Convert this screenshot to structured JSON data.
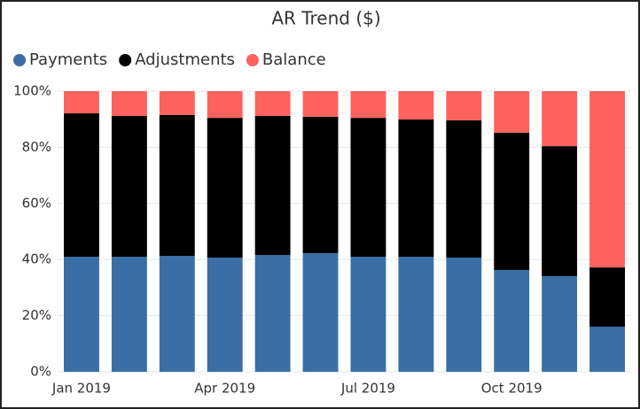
{
  "chart_data": {
    "type": "stacked_bar",
    "title": "AR Trend ($)",
    "categories": [
      "Jan 2019",
      null,
      null,
      "Apr 2019",
      null,
      null,
      "Jul 2019",
      null,
      null,
      "Oct 2019",
      null,
      null
    ],
    "series": [
      {
        "name": "Payments",
        "color": "#3a6ea5",
        "values": [
          41,
          41,
          41.3,
          40.7,
          41.6,
          42.3,
          41,
          41,
          40.7,
          36.3,
          34.1,
          16.1
        ]
      },
      {
        "name": "Adjustments",
        "color": "#000000",
        "values": [
          51.1,
          50.2,
          50.2,
          49.8,
          49.6,
          48.6,
          49.5,
          48.9,
          48.9,
          48.9,
          46.3,
          21.1
        ]
      },
      {
        "name": "Balance",
        "color": "#fd625e",
        "values": [
          7.9,
          8.8,
          8.5,
          9.5,
          8.8,
          9.1,
          9.5,
          10.1,
          10.4,
          14.8,
          19.6,
          62.8
        ]
      }
    ],
    "ylim": [
      0,
      100
    ],
    "yticks": [
      {
        "value": 0,
        "label": "0%"
      },
      {
        "value": 20,
        "label": "20%"
      },
      {
        "value": 40,
        "label": "40%"
      },
      {
        "value": 60,
        "label": "60%"
      },
      {
        "value": 80,
        "label": "80%"
      },
      {
        "value": 100,
        "label": "100%"
      }
    ],
    "grid": true,
    "legend": "top-left"
  }
}
